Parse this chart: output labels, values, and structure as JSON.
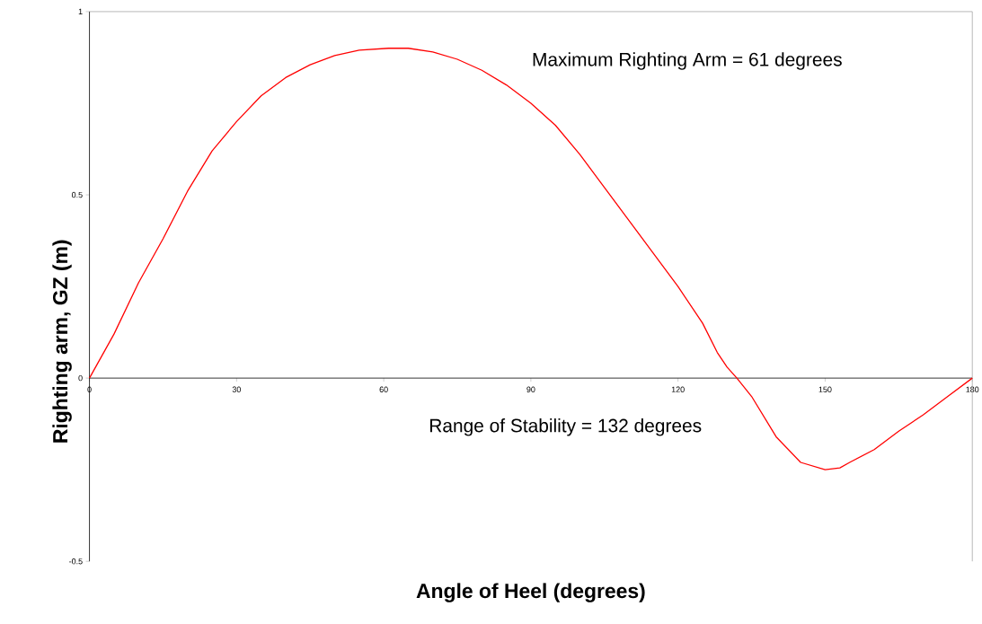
{
  "chart_data": {
    "type": "line",
    "xlabel": "Angle of Heel (degrees)",
    "ylabel": "Righting arm, GZ (m)",
    "annotations": [
      "Maximum Righting Arm = 61 degrees",
      "Range of Stability = 132 degrees"
    ],
    "x": [
      0,
      5,
      10,
      15,
      20,
      25,
      30,
      35,
      40,
      45,
      50,
      55,
      61,
      65,
      70,
      75,
      80,
      85,
      90,
      95,
      100,
      105,
      110,
      115,
      120,
      125,
      128,
      130,
      132,
      135,
      140,
      145,
      150,
      153,
      155,
      160,
      165,
      170,
      175,
      180
    ],
    "series": [
      {
        "color": "#ff0000",
        "values": [
          0,
          0.12,
          0.26,
          0.38,
          0.51,
          0.62,
          0.7,
          0.77,
          0.82,
          0.855,
          0.88,
          0.895,
          0.9,
          0.9,
          0.89,
          0.87,
          0.84,
          0.8,
          0.75,
          0.69,
          0.61,
          0.52,
          0.43,
          0.34,
          0.25,
          0.15,
          0.07,
          0.03,
          0,
          -0.05,
          -0.16,
          -0.23,
          -0.25,
          -0.245,
          -0.23,
          -0.195,
          -0.145,
          -0.1,
          -0.05,
          0
        ]
      }
    ],
    "xlim": [
      0,
      180
    ],
    "xticks": [
      0,
      30,
      60,
      90,
      120,
      150,
      180
    ],
    "ylim": [
      -0.5,
      1
    ],
    "yticks": [
      -0.5,
      0,
      0.5,
      1
    ],
    "marker": "none",
    "line_style": "solid"
  }
}
